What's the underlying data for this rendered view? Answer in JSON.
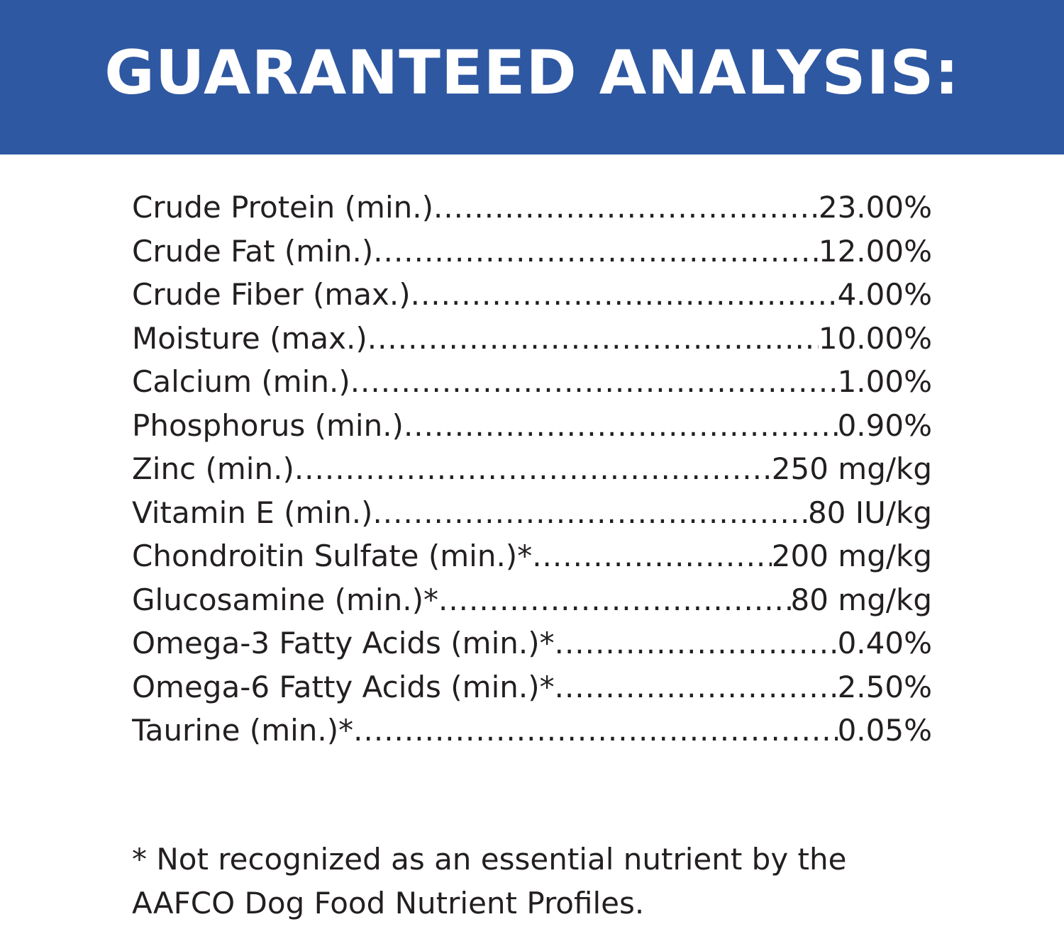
{
  "colors": {
    "header_bg": "#2f58a2",
    "header_text": "#ffffff",
    "body_text": "#231f20"
  },
  "header": {
    "title": "GUARANTEED ANALYSIS:"
  },
  "analysis": [
    {
      "label": "Crude Protein (min.)",
      "value": "23.00%"
    },
    {
      "label": "Crude Fat (min.)",
      "value": "12.00%"
    },
    {
      "label": "Crude Fiber (max.)",
      "value": "4.00%"
    },
    {
      "label": "Moisture (max.)",
      "value": "10.00%"
    },
    {
      "label": "Calcium (min.)",
      "value": "1.00%"
    },
    {
      "label": "Phosphorus (min.)",
      "value": "0.90%"
    },
    {
      "label": "Zinc (min.)",
      "value": "250 mg/kg"
    },
    {
      "label": "Vitamin E (min.)",
      "value": "80 IU/kg"
    },
    {
      "label": "Chondroitin Sulfate (min.)*",
      "value": "200 mg/kg"
    },
    {
      "label": "Glucosamine (min.)*",
      "value": "80 mg/kg"
    },
    {
      "label": "Omega-3 Fatty Acids (min.)*",
      "value": "0.40%"
    },
    {
      "label": "Omega-6 Fatty Acids (min.)*",
      "value": "2.50%"
    },
    {
      "label": "Taurine (min.)*",
      "value": "0.05%"
    }
  ],
  "footnote": "* Not recognized as an essential nutrient by the AAFCO Dog Food Nutrient Profiles."
}
